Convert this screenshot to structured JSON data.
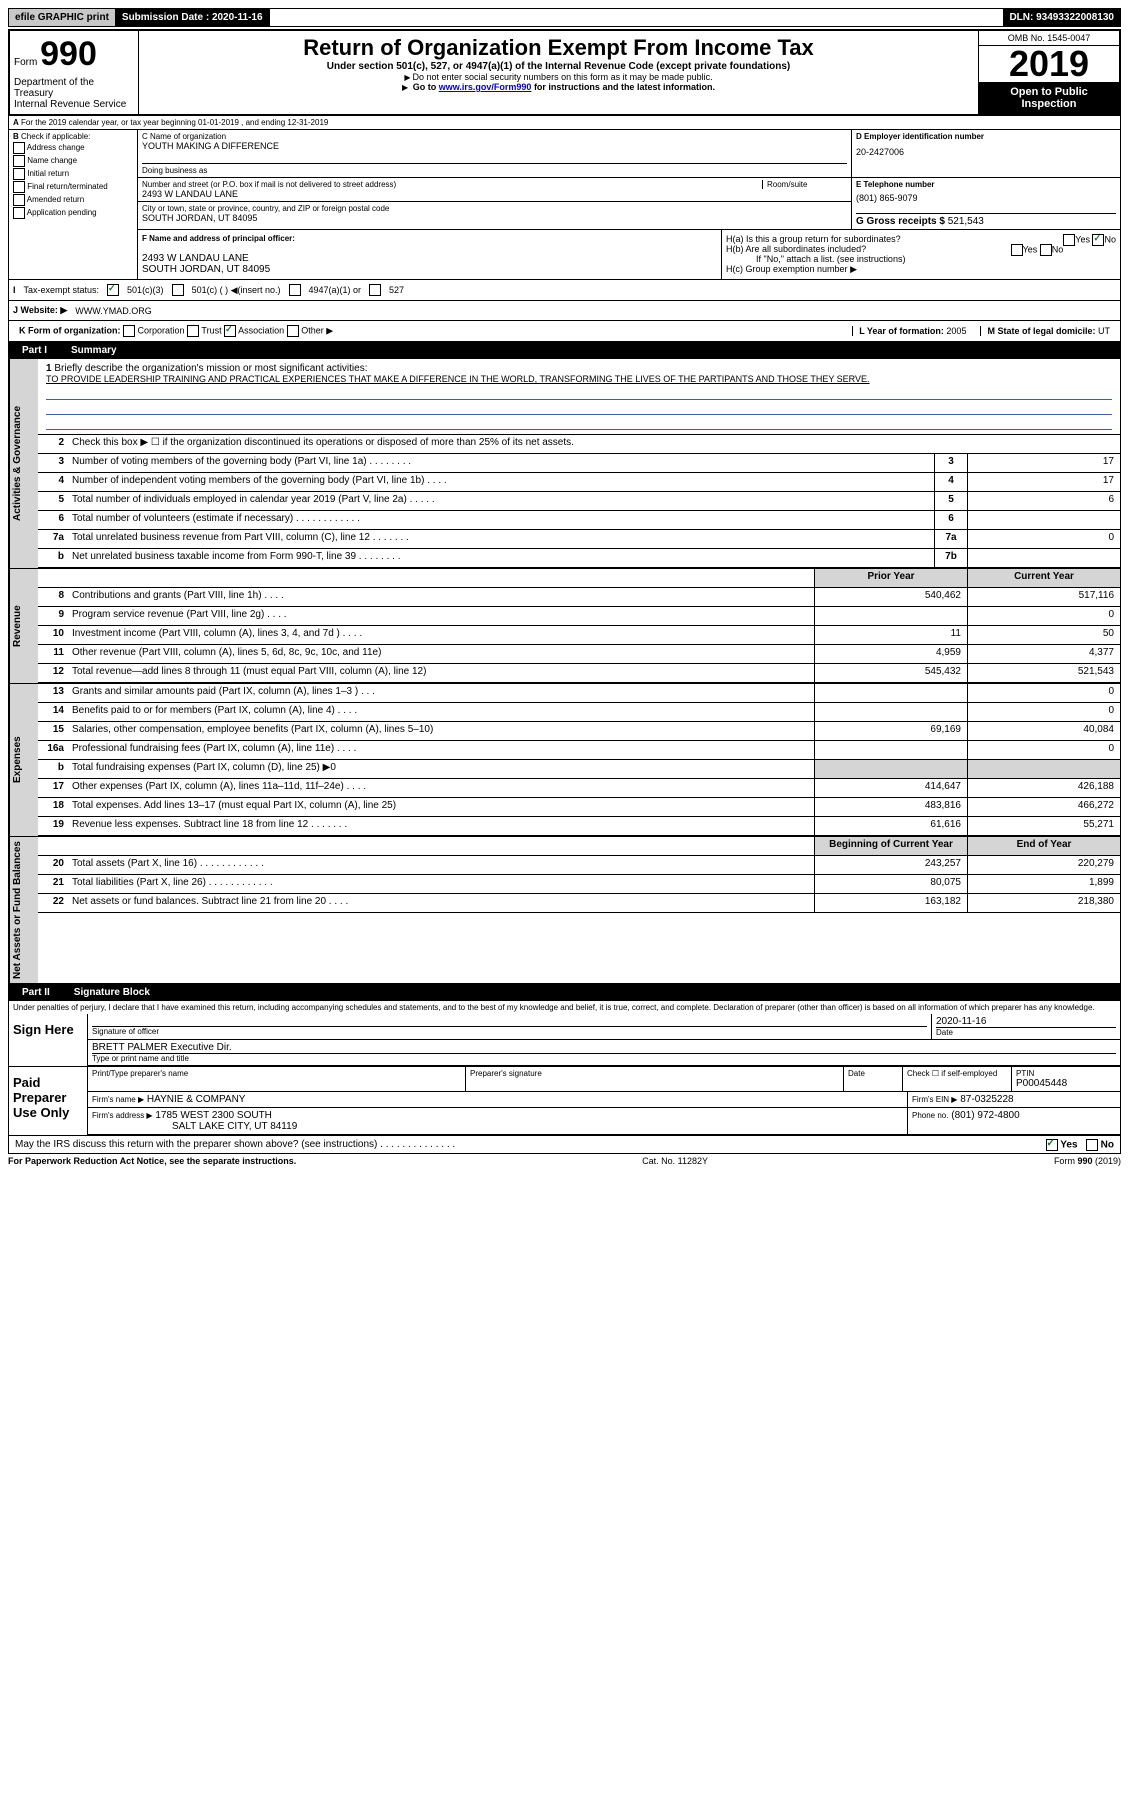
{
  "topbar": {
    "efile": "efile GRAPHIC print",
    "submission_label": "Submission Date :",
    "submission_date": "2020-11-16",
    "dln_label": "DLN:",
    "dln": "93493322008130"
  },
  "header": {
    "form_prefix": "Form",
    "form_num": "990",
    "dept1": "Department of the Treasury",
    "dept2": "Internal Revenue Service",
    "title": "Return of Organization Exempt From Income Tax",
    "subtitle": "Under section 501(c), 527, or 4947(a)(1) of the Internal Revenue Code (except private foundations)",
    "hint1": "Do not enter social security numbers on this form as it may be made public.",
    "hint2_pre": "Go to ",
    "hint2_link": "www.irs.gov/Form990",
    "hint2_post": " for instructions and the latest information.",
    "omb": "OMB No. 1545-0047",
    "year": "2019",
    "open_public": "Open to Public Inspection"
  },
  "section_a": {
    "tax_year": "For the 2019 calendar year, or tax year beginning 01-01-2019    , and ending 12-31-2019",
    "check_label": "Check if applicable:",
    "checks": [
      "Address change",
      "Name change",
      "Initial return",
      "Final return/terminated",
      "Amended return",
      "Application pending"
    ],
    "c_label": "C Name of organization",
    "org_name": "YOUTH MAKING A DIFFERENCE",
    "dba_label": "Doing business as",
    "d_label": "D Employer identification number",
    "ein": "20-2427006",
    "street_label": "Number and street (or P.O. box if mail is not delivered to street address)",
    "room_label": "Room/suite",
    "street": "2493 W LANDAU LANE",
    "city_label": "City or town, state or province, country, and ZIP or foreign postal code",
    "city": "SOUTH JORDAN, UT  84095",
    "e_label": "E Telephone number",
    "phone": "(801) 865-9079",
    "g_label": "G Gross receipts $",
    "gross": "521,543",
    "f_label": "F  Name and address of principal officer:",
    "f_addr1": "2493 W LANDAU LANE",
    "f_addr2": "SOUTH JORDAN, UT  84095",
    "ha_label": "H(a)  Is this a group return for subordinates?",
    "hb_label": "H(b)  Are all subordinates included?",
    "hb_note": "If \"No,\" attach a list. (see instructions)",
    "hc_label": "H(c)  Group exemption number"
  },
  "status": {
    "label": "Tax-exempt status:",
    "opt1": "501(c)(3)",
    "opt2": "501(c) (  ) ◀(insert no.)",
    "opt3": "4947(a)(1) or",
    "opt4": "527"
  },
  "website": {
    "label": "J   Website: ▶",
    "value": "WWW.YMAD.ORG"
  },
  "kform": {
    "label": "K Form of organization:",
    "opts": [
      "Corporation",
      "Trust",
      "Association",
      "Other ▶"
    ],
    "l_label": "L Year of formation:",
    "l_val": "2005",
    "m_label": "M State of legal domicile:",
    "m_val": "UT"
  },
  "part1": {
    "tab": "Part I",
    "title": "Summary",
    "line1_label": "Briefly describe the organization's mission or most significant activities:",
    "mission": "TO PROVIDE LEADERSHIP TRAINING AND PRACTICAL EXPERIENCES THAT MAKE A DIFFERENCE IN THE WORLD, TRANSFORMING THE LIVES OF THE PARTIPANTS AND THOSE THEY SERVE.",
    "line2": "Check this box ▶ ☐  if the organization discontinued its operations or disposed of more than 25% of its net assets.",
    "prior_year": "Prior Year",
    "current_year": "Current Year",
    "boy": "Beginning of Current Year",
    "eoy": "End of Year",
    "rows_gov": [
      {
        "n": "3",
        "label": "Number of voting members of the governing body (Part VI, line 1a)    .    .    .    .    .    .    .    .",
        "box": "3",
        "cy": "17"
      },
      {
        "n": "4",
        "label": "Number of independent voting members of the governing body (Part VI, line 1b)    .    .    .    .",
        "box": "4",
        "cy": "17"
      },
      {
        "n": "5",
        "label": "Total number of individuals employed in calendar year 2019 (Part V, line 2a)    .    .    .    .    .",
        "box": "5",
        "cy": "6"
      },
      {
        "n": "6",
        "label": "Total number of volunteers (estimate if necessary)    .    .    .    .    .    .    .    .    .    .    .    .",
        "box": "6",
        "cy": ""
      },
      {
        "n": "7a",
        "label": "Total unrelated business revenue from Part VIII, column (C), line 12    .    .    .    .    .    .    .",
        "box": "7a",
        "cy": "0"
      },
      {
        "n": "b",
        "label": "Net unrelated business taxable income from Form 990-T, line 39    .    .    .    .    .    .    .    .",
        "box": "7b",
        "cy": ""
      }
    ],
    "rows_rev": [
      {
        "n": "8",
        "label": "Contributions and grants (Part VIII, line 1h)    .    .    .    .",
        "py": "540,462",
        "cy": "517,116"
      },
      {
        "n": "9",
        "label": "Program service revenue (Part VIII, line 2g)    .    .    .    .",
        "py": "",
        "cy": "0"
      },
      {
        "n": "10",
        "label": "Investment income (Part VIII, column (A), lines 3, 4, and 7d )    .    .    .    .",
        "py": "11",
        "cy": "50"
      },
      {
        "n": "11",
        "label": "Other revenue (Part VIII, column (A), lines 5, 6d, 8c, 9c, 10c, and 11e)",
        "py": "4,959",
        "cy": "4,377"
      },
      {
        "n": "12",
        "label": "Total revenue—add lines 8 through 11 (must equal Part VIII, column (A), line 12)",
        "py": "545,432",
        "cy": "521,543"
      }
    ],
    "rows_exp": [
      {
        "n": "13",
        "label": "Grants and similar amounts paid (Part IX, column (A), lines 1–3 )    .    .    .",
        "py": "",
        "cy": "0"
      },
      {
        "n": "14",
        "label": "Benefits paid to or for members (Part IX, column (A), line 4)    .    .    .    .",
        "py": "",
        "cy": "0"
      },
      {
        "n": "15",
        "label": "Salaries, other compensation, employee benefits (Part IX, column (A), lines 5–10)",
        "py": "69,169",
        "cy": "40,084"
      },
      {
        "n": "16a",
        "label": "Professional fundraising fees (Part IX, column (A), line 11e)    .    .    .    .",
        "py": "",
        "cy": "0"
      },
      {
        "n": "b",
        "label": "Total fundraising expenses (Part IX, column (D), line 25) ▶0",
        "py": "",
        "cy": "",
        "gray_py": true,
        "gray_cy": true
      },
      {
        "n": "17",
        "label": "Other expenses (Part IX, column (A), lines 11a–11d, 11f–24e)    .    .    .    .",
        "py": "414,647",
        "cy": "426,188"
      },
      {
        "n": "18",
        "label": "Total expenses. Add lines 13–17 (must equal Part IX, column (A), line 25)",
        "py": "483,816",
        "cy": "466,272"
      },
      {
        "n": "19",
        "label": "Revenue less expenses. Subtract line 18 from line 12    .    .    .    .    .    .    .",
        "py": "61,616",
        "cy": "55,271"
      }
    ],
    "rows_net": [
      {
        "n": "20",
        "label": "Total assets (Part X, line 16)    .    .    .    .    .    .    .    .    .    .    .    .",
        "py": "243,257",
        "cy": "220,279"
      },
      {
        "n": "21",
        "label": "Total liabilities (Part X, line 26)    .    .    .    .    .    .    .    .    .    .    .    .",
        "py": "80,075",
        "cy": "1,899"
      },
      {
        "n": "22",
        "label": "Net assets or fund balances. Subtract line 21 from line 20    .    .    .    .",
        "py": "163,182",
        "cy": "218,380"
      }
    ]
  },
  "part2": {
    "tab": "Part II",
    "title": "Signature Block",
    "disclaimer": "Under penalties of perjury, I declare that I have examined this return, including accompanying schedules and statements, and to the best of my knowledge and belief, it is true, correct, and complete. Declaration of preparer (other than officer) is based on all information of which preparer has any knowledge.",
    "sign_here": "Sign Here",
    "sig_officer": "Signature of officer",
    "sig_date": "2020-11-16",
    "date_label": "Date",
    "officer_name": "BRETT PALMER  Executive Dir.",
    "type_name": "Type or print name and title",
    "paid_prep": "Paid Preparer Use Only",
    "print_name": "Print/Type preparer's name",
    "prep_sig": "Preparer's signature",
    "check_self": "Check ☐ if self-employed",
    "ptin_label": "PTIN",
    "ptin": "P00045448",
    "firm_name_label": "Firm's name      ▶",
    "firm_name": "HAYNIE & COMPANY",
    "firm_ein_label": "Firm's EIN ▶",
    "firm_ein": "87-0325228",
    "firm_addr_label": "Firm's address ▶",
    "firm_addr1": "1785 WEST 2300 SOUTH",
    "firm_addr2": "SALT LAKE CITY, UT  84119",
    "phone_label": "Phone no.",
    "phone": "(801) 972-4800",
    "discuss": "May the IRS discuss this return with the preparer shown above? (see instructions)    .    .    .    .    .    .    .    .    .    .    .    .    .    ."
  },
  "footer": {
    "left": "For Paperwork Reduction Act Notice, see the separate instructions.",
    "center": "Cat. No. 11282Y",
    "right": "Form 990 (2019)"
  },
  "side_labels": {
    "gov": "Activities & Governance",
    "rev": "Revenue",
    "exp": "Expenses",
    "net": "Net Assets or Fund Balances"
  },
  "yes": "Yes",
  "no": "No"
}
